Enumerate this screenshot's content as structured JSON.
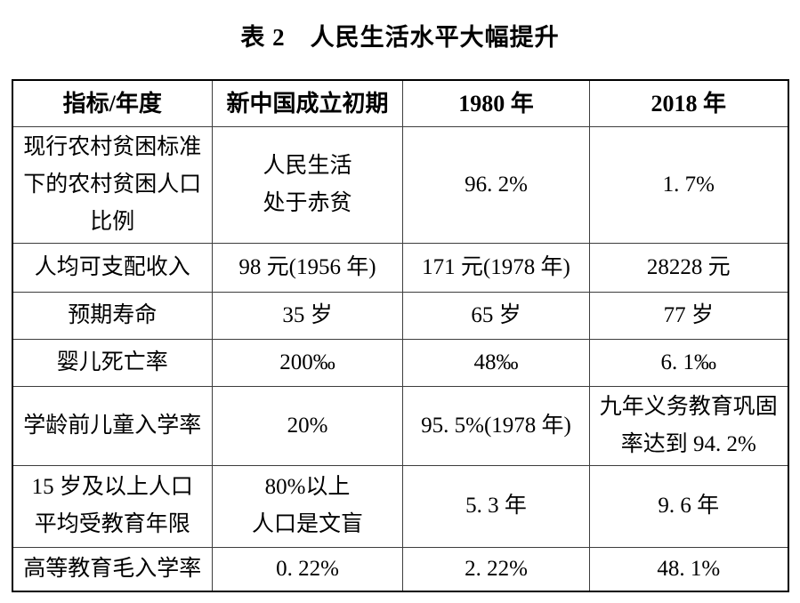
{
  "page": {
    "background": "#ffffff",
    "text_color": "#000000",
    "outer_border_color": "#000000",
    "inner_rule_color": "#3d3d3d"
  },
  "title": "表 2　人民生活水平大幅提升",
  "table": {
    "headers": [
      "指标/年度",
      "新中国成立初期",
      "1980 年",
      "2018 年"
    ],
    "rows": [
      {
        "cells": [
          [
            "现行农村贫困标准",
            "下的农村贫困人口",
            "比例"
          ],
          [
            "人民生活",
            "处于赤贫"
          ],
          "96. 2%",
          "1. 7%"
        ]
      },
      {
        "cells": [
          "人均可支配收入",
          "98 元(1956 年)",
          "171 元(1978 年)",
          "28228 元"
        ]
      },
      {
        "cells": [
          "预期寿命",
          "35 岁",
          "65 岁",
          "77 岁"
        ]
      },
      {
        "cells": [
          "婴儿死亡率",
          "200‰",
          "48‰",
          "6. 1‰"
        ]
      },
      {
        "cells": [
          "学龄前儿童入学率",
          "20%",
          "95. 5%(1978 年)",
          [
            "九年义务教育巩固",
            "率达到 94. 2%"
          ]
        ]
      },
      {
        "cells": [
          [
            "15 岁及以上人口",
            "平均受教育年限"
          ],
          [
            "80%以上",
            "人口是文盲"
          ],
          "5. 3 年",
          "9. 6 年"
        ]
      },
      {
        "cells": [
          "高等教育毛入学率",
          "0. 22%",
          "2. 22%",
          "48. 1%"
        ]
      }
    ]
  },
  "chart_data": {
    "type": "table",
    "title": "表 2 人民生活水平大幅提升",
    "columns": [
      "指标/年度",
      "新中国成立初期",
      "1980 年",
      "2018 年"
    ],
    "rows": [
      [
        "现行农村贫困标准下的农村贫困人口比例",
        "人民生活处于赤贫",
        "96.2%",
        "1.7%"
      ],
      [
        "人均可支配收入",
        "98 元(1956 年)",
        "171 元(1978 年)",
        "28228 元"
      ],
      [
        "预期寿命",
        "35 岁",
        "65 岁",
        "77 岁"
      ],
      [
        "婴儿死亡率",
        "200‰",
        "48‰",
        "6.1‰"
      ],
      [
        "学龄前儿童入学率",
        "20%",
        "95.5%(1978 年)",
        "九年义务教育巩固率达到 94.2%"
      ],
      [
        "15 岁及以上人口平均受教育年限",
        "80%以上人口是文盲",
        "5.3 年",
        "9.6 年"
      ],
      [
        "高等教育毛入学率",
        "0.22%",
        "2.22%",
        "48.1%"
      ]
    ],
    "layout": {
      "header_bold": true,
      "grid": true,
      "cell_align": "center"
    }
  }
}
